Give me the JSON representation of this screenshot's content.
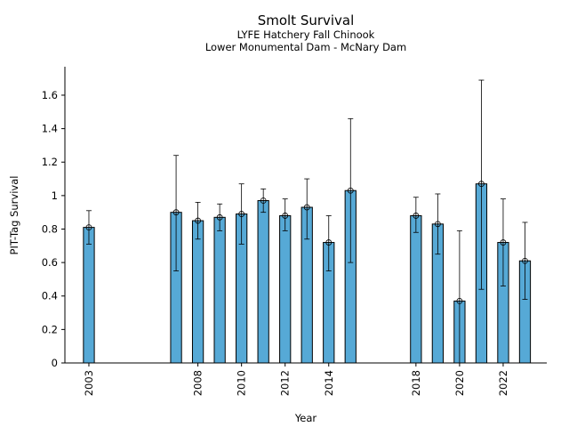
{
  "chart_data": {
    "type": "bar",
    "title": "Smolt Survival",
    "subtitle_lines": [
      "LYFE Hatchery Fall Chinook",
      "Lower Monumental Dam - McNary Dam"
    ],
    "xlabel": "Year",
    "ylabel": "PIT-Tag Survival",
    "x_ticks": [
      2003,
      2008,
      2010,
      2012,
      2014,
      2018,
      2020,
      2022
    ],
    "x_tick_labels": [
      "2003",
      "2008",
      "2010",
      "2012",
      "2014",
      "2018",
      "2020",
      "2022"
    ],
    "y_ticks": [
      0,
      0.2,
      0.4,
      0.6,
      0.8,
      1,
      1.2,
      1.4,
      1.6
    ],
    "y_tick_labels": [
      "0",
      "0.2",
      "0.4",
      "0.6",
      "0.8",
      "1",
      "1.2",
      "1.4",
      "1.6"
    ],
    "xlim": [
      2001.9,
      2024.0
    ],
    "ylim": [
      0,
      1.77
    ],
    "grid": false,
    "bar_color": "#56A9D6",
    "points": [
      {
        "year": 2003,
        "value": 0.81,
        "lower": 0.71,
        "upper": 0.91
      },
      {
        "year": 2007,
        "value": 0.9,
        "lower": 0.55,
        "upper": 1.24
      },
      {
        "year": 2008,
        "value": 0.85,
        "lower": 0.74,
        "upper": 0.96
      },
      {
        "year": 2009,
        "value": 0.87,
        "lower": 0.79,
        "upper": 0.95
      },
      {
        "year": 2010,
        "value": 0.89,
        "lower": 0.71,
        "upper": 1.07
      },
      {
        "year": 2011,
        "value": 0.97,
        "lower": 0.9,
        "upper": 1.04
      },
      {
        "year": 2012,
        "value": 0.88,
        "lower": 0.79,
        "upper": 0.98
      },
      {
        "year": 2013,
        "value": 0.93,
        "lower": 0.74,
        "upper": 1.1
      },
      {
        "year": 2014,
        "value": 0.72,
        "lower": 0.55,
        "upper": 0.88
      },
      {
        "year": 2015,
        "value": 1.03,
        "lower": 0.6,
        "upper": 1.46
      },
      {
        "year": 2018,
        "value": 0.88,
        "lower": 0.78,
        "upper": 0.99
      },
      {
        "year": 2019,
        "value": 0.83,
        "lower": 0.65,
        "upper": 1.01
      },
      {
        "year": 2020,
        "value": 0.37,
        "lower": 0.0,
        "upper": 0.79
      },
      {
        "year": 2021,
        "value": 1.07,
        "lower": 0.44,
        "upper": 1.69
      },
      {
        "year": 2022,
        "value": 0.72,
        "lower": 0.46,
        "upper": 0.98
      },
      {
        "year": 2023,
        "value": 0.61,
        "lower": 0.38,
        "upper": 0.84
      }
    ]
  }
}
